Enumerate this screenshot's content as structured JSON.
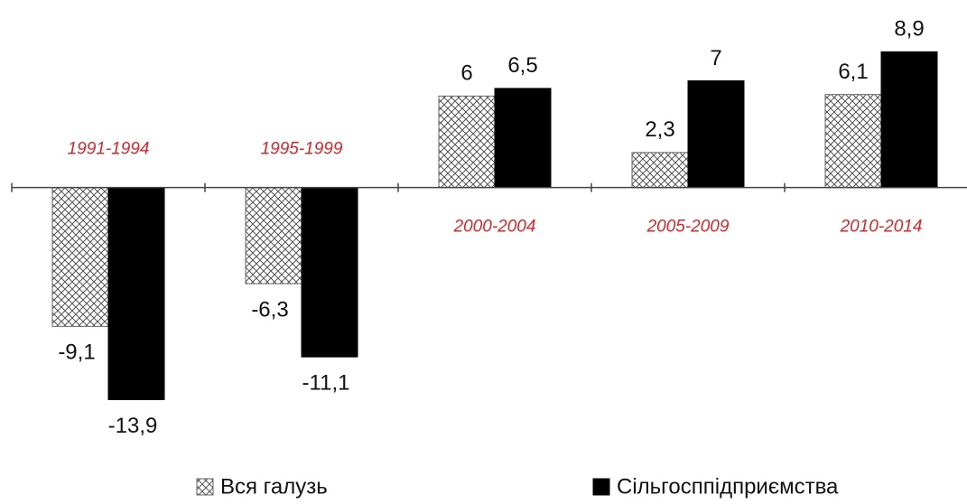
{
  "chart_data": {
    "type": "bar",
    "categories": [
      "1991-1994",
      "1995-1999",
      "2000-2004",
      "2005-2009",
      "2010-2014"
    ],
    "series": [
      {
        "name": "Вся галузь",
        "color": "#555555",
        "values": [
          -9.1,
          -6.3,
          6,
          2.3,
          6.1
        ],
        "value_labels": [
          "-9,1",
          "-6,3",
          "6",
          "2,3",
          "6,1"
        ]
      },
      {
        "name": "Сільгосппідприємства",
        "color": "#000000",
        "values": [
          -13.9,
          -11.1,
          6.5,
          7,
          8.9
        ],
        "value_labels": [
          "-13,9",
          "-11,1",
          "6,5",
          "7",
          "8,9"
        ]
      }
    ],
    "ylim": [
      -15,
      12
    ]
  }
}
